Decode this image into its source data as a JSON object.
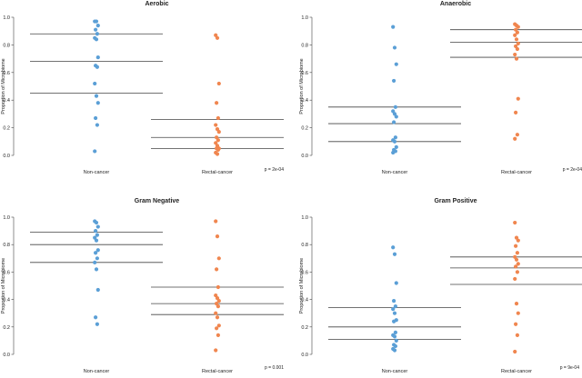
{
  "colors": {
    "non_cancer": "#5b9fd6",
    "rectal_cancer": "#f0864f",
    "lines": "#444444"
  },
  "chart_data": [
    {
      "type": "scatter",
      "title": "Aerobic",
      "ylabel": "Proportion of Microbiome",
      "categories": [
        "Non-cancer",
        "Rectal-cancer"
      ],
      "ylim": [
        0,
        1
      ],
      "yticks": [
        "0.0",
        "0.2",
        "0.4",
        "0.6",
        "0.8",
        "1.0"
      ],
      "pvalue": "p = 2e-04",
      "series": [
        {
          "values": [
            0.97,
            0.97,
            0.94,
            0.91,
            0.88,
            0.85,
            0.84,
            0.71,
            0.65,
            0.64,
            0.52,
            0.43,
            0.38,
            0.27,
            0.22,
            0.03
          ],
          "quartiles": [
            0.45,
            0.68,
            0.88
          ]
        },
        {
          "values": [
            0.87,
            0.85,
            0.52,
            0.38,
            0.27,
            0.22,
            0.19,
            0.17,
            0.13,
            0.11,
            0.09,
            0.07,
            0.05,
            0.05,
            0.04,
            0.02,
            0.01
          ],
          "quartiles": [
            0.05,
            0.13,
            0.26
          ]
        }
      ]
    },
    {
      "type": "scatter",
      "title": "Anaerobic",
      "ylabel": "Proportion of Microbiome",
      "categories": [
        "Non-cancer",
        "Rectal-cancer"
      ],
      "ylim": [
        0,
        1
      ],
      "yticks": [
        "0.0",
        "0.2",
        "0.4",
        "0.6",
        "0.8",
        "1.0"
      ],
      "pvalue": "p = 2e-04",
      "series": [
        {
          "values": [
            0.93,
            0.78,
            0.66,
            0.54,
            0.35,
            0.32,
            0.3,
            0.28,
            0.24,
            0.13,
            0.11,
            0.1,
            0.06,
            0.04,
            0.03,
            0.02
          ],
          "quartiles": [
            0.1,
            0.23,
            0.35
          ]
        },
        {
          "values": [
            0.95,
            0.94,
            0.93,
            0.91,
            0.89,
            0.87,
            0.84,
            0.81,
            0.79,
            0.77,
            0.73,
            0.7,
            0.41,
            0.31,
            0.15,
            0.12
          ],
          "quartiles": [
            0.71,
            0.82,
            0.91
          ]
        }
      ]
    },
    {
      "type": "scatter",
      "title": "Gram Negative",
      "ylabel": "Proportion of Microbiome",
      "categories": [
        "Non-cancer",
        "Rectal-cancer"
      ],
      "ylim": [
        0,
        1
      ],
      "yticks": [
        "0.0",
        "0.2",
        "0.4",
        "0.6",
        "0.8",
        "1.0"
      ],
      "pvalue": "p = 0.001",
      "series": [
        {
          "values": [
            0.97,
            0.96,
            0.93,
            0.9,
            0.87,
            0.85,
            0.83,
            0.76,
            0.74,
            0.7,
            0.67,
            0.62,
            0.47,
            0.27,
            0.22
          ],
          "quartiles": [
            0.67,
            0.8,
            0.89
          ]
        },
        {
          "values": [
            0.97,
            0.86,
            0.7,
            0.62,
            0.49,
            0.43,
            0.41,
            0.39,
            0.37,
            0.35,
            0.3,
            0.27,
            0.21,
            0.19,
            0.14,
            0.03
          ],
          "quartiles": [
            0.29,
            0.37,
            0.49
          ]
        }
      ]
    },
    {
      "type": "scatter",
      "title": "Gram Positive",
      "ylabel": "Proportion of Microbiome",
      "categories": [
        "Non-cancer",
        "Rectal-cancer"
      ],
      "ylim": [
        0,
        1
      ],
      "yticks": [
        "0.0",
        "0.2",
        "0.4",
        "0.6",
        "0.8",
        "1.0"
      ],
      "pvalue": "p = 9e-04",
      "series": [
        {
          "values": [
            0.78,
            0.73,
            0.52,
            0.39,
            0.35,
            0.33,
            0.3,
            0.25,
            0.24,
            0.16,
            0.14,
            0.13,
            0.1,
            0.07,
            0.06,
            0.04,
            0.03
          ],
          "quartiles": [
            0.11,
            0.2,
            0.34
          ]
        },
        {
          "values": [
            0.96,
            0.85,
            0.83,
            0.79,
            0.74,
            0.71,
            0.69,
            0.66,
            0.64,
            0.6,
            0.55,
            0.37,
            0.3,
            0.22,
            0.14,
            0.02
          ],
          "quartiles": [
            0.51,
            0.63,
            0.71
          ]
        }
      ]
    }
  ]
}
